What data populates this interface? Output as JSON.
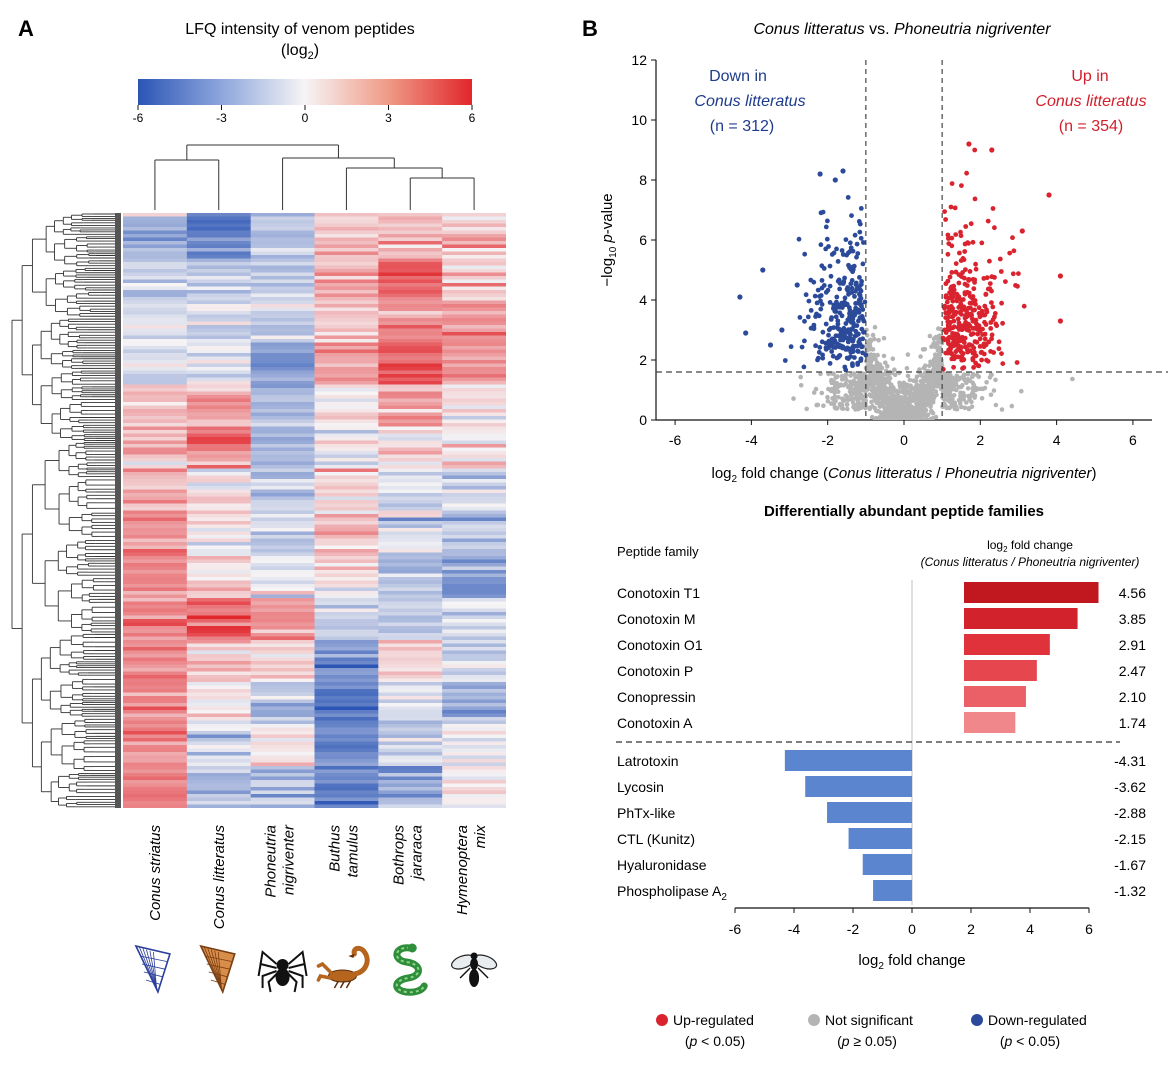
{
  "panels": {
    "a": "A",
    "b": "B"
  },
  "colors": {
    "up": "#d9232e",
    "down": "#2b4a9a",
    "ns": "#b4b4b4",
    "hm_neg": "#2b55b5",
    "hm_mid": "#f6f4f5",
    "hm_pos": "#e1262c",
    "bar_up": [
      "#c1181f",
      "#d2232c",
      "#e0323a",
      "#e6474e",
      "#ea6066",
      "#f0878b"
    ],
    "bar_down": "#5b86cf"
  },
  "heatmap": {
    "title": "LFQ intensity of venom peptides",
    "title_unit_pre": "(log",
    "title_unit_sub": "2",
    "title_unit_post": ")",
    "scale_ticks": [
      "-6",
      "-3",
      "0",
      "3",
      "6"
    ],
    "columns": [
      "Conus striatus",
      "Conus litteratus",
      "Phoneutria nigriventer",
      "Buthus tamulus",
      "Bothrops jararaca",
      "Hymenoptera mix"
    ],
    "col_labels": [
      [
        "Conus striatus"
      ],
      [
        "Conus litteratus"
      ],
      [
        "Phoneutria",
        "nigriventer"
      ],
      [
        "Buthus",
        "tamulus"
      ],
      [
        "Bothrops",
        "jararaca"
      ],
      [
        "Hymenoptera",
        "mix"
      ]
    ],
    "organisms": [
      "cone-shell-icon",
      "cone-shell-icon",
      "spider-icon",
      "scorpion-icon",
      "snake-icon",
      "wasp-icon"
    ]
  },
  "volcano": {
    "title_italic_1": "Conus litteratus",
    "title_mid": " vs. ",
    "title_italic_2": "Phoneutria nigriventer",
    "ylabel_pre": "−log",
    "ylabel_sub": "10",
    "ylabel_p": "p",
    "ylabel_post": "-value",
    "xlabel_pre": "log",
    "xlabel_sub": "2",
    "xlabel_mid": " fold change (",
    "xlabel_it1": "Conus litteratus",
    "xlabel_slash": " / ",
    "xlabel_it2": "Phoneutria nigriventer",
    "xlabel_post": ")",
    "xticks": [
      "-6",
      "-4",
      "-2",
      "0",
      "2",
      "4",
      "6"
    ],
    "yticks": [
      "0",
      "2",
      "4",
      "6",
      "8",
      "10",
      "12"
    ],
    "down_label": [
      "Down in",
      "Conus litteratus",
      "(n = 312)"
    ],
    "up_label": [
      "Up in",
      "Conus litteratus",
      "(n = 354)"
    ]
  },
  "families": {
    "title": "Differentially abundant peptide families",
    "col_family": "Peptide family",
    "col_fc_pre": "log",
    "col_fc_sub": "2",
    "col_fc_post": " fold change",
    "col_fc_line2": "(Conus litteratus / Phoneutria nigriventer)",
    "xlabel_pre": "log",
    "xlabel_sub": "2",
    "xlabel_post": " fold change",
    "xticks": [
      "-6",
      "-4",
      "-2",
      "0",
      "2",
      "4",
      "6"
    ]
  },
  "legend": [
    {
      "label": "Up-regulated",
      "note": "(p < 0.05)",
      "color": "#d9232e"
    },
    {
      "label": "Not significant",
      "note": "(p ≥ 0.05)",
      "color": "#b4b4b4"
    },
    {
      "label": "Down-regulated",
      "note": "(p < 0.05)",
      "color": "#2b4a9a"
    }
  ],
  "chart_data": [
    {
      "type": "heatmap",
      "title": "LFQ intensity of venom peptides (log2)",
      "columns": [
        "Conus striatus",
        "Conus litteratus",
        "Phoneutria nigriventer",
        "Buthus tamulus",
        "Bothrops jararaca",
        "Hymenoptera mix"
      ],
      "color_range": [
        -6,
        6
      ],
      "color_scale_ticks": [
        -6,
        -3,
        0,
        3,
        6
      ],
      "column_dendrogram": true,
      "row_dendrogram": true,
      "row_clusters": [
        {
          "values": [
            -2.5,
            -4.5,
            -2.0,
            1.5,
            2.0,
            1.5
          ]
        },
        {
          "values": [
            -1.5,
            -1.5,
            -1.5,
            2.0,
            4.0,
            1.0
          ]
        },
        {
          "values": [
            -1.0,
            -1.0,
            -1.5,
            1.0,
            2.5,
            3.0
          ]
        },
        {
          "values": [
            -1.0,
            -0.5,
            -3.0,
            2.5,
            4.5,
            2.5
          ]
        },
        {
          "values": [
            1.5,
            2.0,
            -1.5,
            0.5,
            2.0,
            0.5
          ]
        },
        {
          "values": [
            1.5,
            4.0,
            -2.0,
            0.0,
            1.0,
            0.5
          ]
        },
        {
          "values": [
            2.0,
            0.5,
            -1.5,
            1.0,
            -1.0,
            -1.0
          ]
        },
        {
          "values": [
            3.0,
            0.5,
            -1.0,
            1.5,
            -0.5,
            -2.0
          ]
        },
        {
          "values": [
            3.0,
            1.0,
            -1.0,
            0.5,
            -2.0,
            -3.0
          ]
        },
        {
          "values": [
            3.5,
            4.0,
            3.0,
            -1.5,
            -1.5,
            -1.5
          ]
        },
        {
          "values": [
            3.0,
            1.0,
            1.0,
            -3.5,
            1.0,
            -1.0
          ]
        },
        {
          "values": [
            3.0,
            0.0,
            -1.5,
            -4.5,
            -1.0,
            -2.5
          ]
        },
        {
          "values": [
            3.0,
            -1.0,
            0.5,
            -4.0,
            -1.0,
            -0.5
          ]
        },
        {
          "values": [
            3.0,
            -2.0,
            -2.0,
            -4.5,
            -3.0,
            0.0
          ]
        }
      ]
    },
    {
      "type": "scatter",
      "title": "Conus litteratus vs. Phoneutria nigriventer",
      "xlabel": "log2 fold change (Conus litteratus / Phoneutria nigriventer)",
      "ylabel": "−log10 p-value",
      "xlim": [
        -6.5,
        6.5
      ],
      "ylim": [
        0,
        12
      ],
      "fold_change_threshold": [
        -1,
        1
      ],
      "pvalue_threshold_log10": 1.6,
      "down_count": 312,
      "up_count": 354,
      "outliers": [
        {
          "x": -4.3,
          "y": 4.1,
          "group": "down"
        },
        {
          "x": -4.15,
          "y": 2.9,
          "group": "down"
        },
        {
          "x": -3.7,
          "y": 5.0,
          "group": "down"
        },
        {
          "x": -3.2,
          "y": 3.0,
          "group": "down"
        },
        {
          "x": -3.5,
          "y": 2.5,
          "group": "down"
        },
        {
          "x": -2.8,
          "y": 4.5,
          "group": "down"
        },
        {
          "x": -2.2,
          "y": 8.2,
          "group": "down"
        },
        {
          "x": -1.8,
          "y": 8.0,
          "group": "down"
        },
        {
          "x": -1.6,
          "y": 8.3,
          "group": "down"
        },
        {
          "x": 3.8,
          "y": 7.5,
          "group": "up"
        },
        {
          "x": 4.1,
          "y": 4.8,
          "group": "up"
        },
        {
          "x": 4.1,
          "y": 3.3,
          "group": "up"
        },
        {
          "x": 1.7,
          "y": 9.2,
          "group": "up"
        },
        {
          "x": 2.3,
          "y": 9.0,
          "group": "up"
        },
        {
          "x": 3.1,
          "y": 6.3,
          "group": "up"
        }
      ]
    },
    {
      "type": "bar",
      "title": "Differentially abundant peptide families",
      "xlabel": "log2 fold change",
      "xlim": [
        -6,
        6
      ],
      "categories": [
        "Conotoxin T1",
        "Conotoxin M",
        "Conotoxin O1",
        "Conotoxin P",
        "Conopressin",
        "Conotoxin A",
        "Latrotoxin",
        "Lycosin",
        "PhTx-like",
        "CTL (Kunitz)",
        "Hyaluronidase",
        "Phospholipase A2"
      ],
      "values": [
        4.56,
        3.85,
        2.91,
        2.47,
        2.1,
        1.74,
        -4.31,
        -3.62,
        -2.88,
        -2.15,
        -1.67,
        -1.32
      ],
      "value_labels": [
        "4.56",
        "3.85",
        "2.91",
        "2.47",
        "2.10",
        "1.74",
        "-4.31",
        "-3.62",
        "-2.88",
        "-2.15",
        "-1.67",
        "-1.32"
      ]
    }
  ]
}
